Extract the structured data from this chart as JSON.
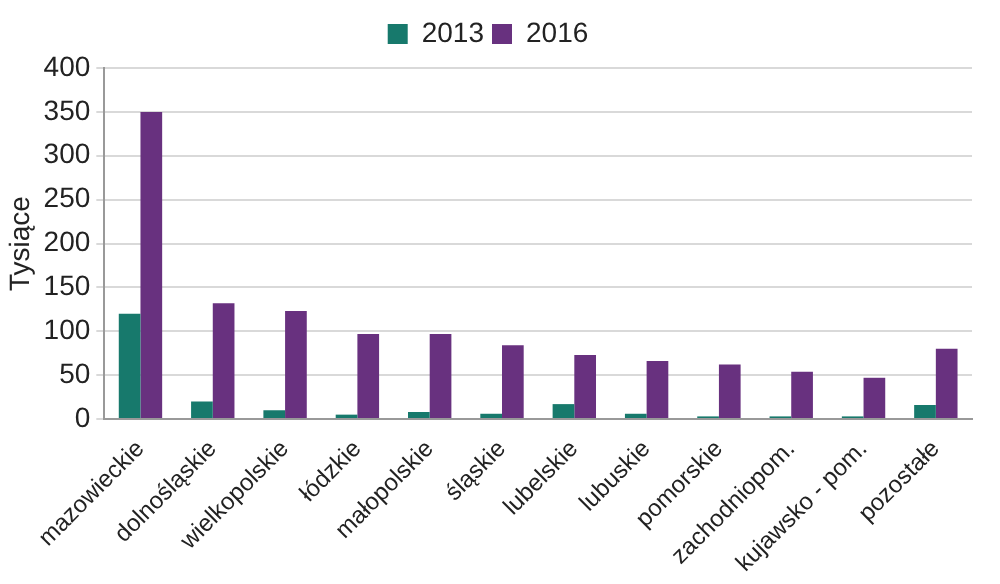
{
  "chart_data": {
    "type": "bar",
    "ylabel": "Tysiące",
    "categories": [
      "mazowieckie",
      "dolnośląskie",
      "wielkopolskie",
      "łódzkie",
      "małopolskie",
      "śląskie",
      "lubelskie",
      "lubuskie",
      "pomorskie",
      "zachodniopom.",
      "kujawsko - pom.",
      "pozostałe"
    ],
    "series": [
      {
        "name": "2013",
        "color": "#17796c",
        "values": [
          120,
          20,
          10,
          5,
          8,
          6,
          17,
          6,
          3,
          3,
          3,
          16
        ]
      },
      {
        "name": "2016",
        "color": "#68317f",
        "values": [
          350,
          132,
          123,
          97,
          97,
          84,
          73,
          66,
          62,
          54,
          47,
          80
        ]
      }
    ],
    "ylim": [
      0,
      400
    ],
    "yticks": [
      0,
      50,
      100,
      150,
      200,
      250,
      300,
      350,
      400
    ],
    "grid": "y",
    "legend": "top"
  }
}
